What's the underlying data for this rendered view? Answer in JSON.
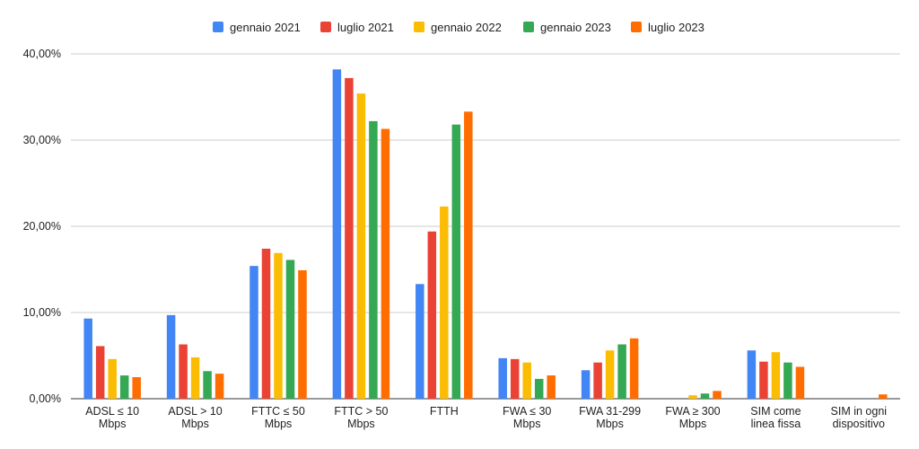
{
  "chart_data": {
    "type": "bar",
    "title": "",
    "xlabel": "",
    "ylabel": "",
    "ylim": [
      0,
      40
    ],
    "y_ticks": [
      0,
      10,
      20,
      30,
      40
    ],
    "y_tick_labels": [
      "0,00%",
      "10,00%",
      "20,00%",
      "30,00%",
      "40,00%"
    ],
    "grid": true,
    "legend_position": "top-center",
    "categories": [
      [
        "ADSL ≤ 10",
        "Mbps"
      ],
      [
        "ADSL > 10",
        "Mbps"
      ],
      [
        "FTTC ≤ 50",
        "Mbps"
      ],
      [
        "FTTC > 50",
        "Mbps"
      ],
      [
        "FTTH"
      ],
      [
        "FWA ≤ 30",
        "Mbps"
      ],
      [
        "FWA 31-299",
        "Mbps"
      ],
      [
        "FWA ≥ 300",
        "Mbps"
      ],
      [
        "SIM come",
        "linea fissa"
      ],
      [
        "SIM in ogni",
        "dispositivo"
      ]
    ],
    "series": [
      {
        "name": "gennaio 2021",
        "color": "#4285F4",
        "values": [
          9.3,
          9.7,
          15.4,
          38.2,
          13.3,
          4.7,
          3.3,
          0,
          5.6,
          0
        ]
      },
      {
        "name": "luglio 2021",
        "color": "#EA4335",
        "values": [
          6.1,
          6.3,
          17.4,
          37.2,
          19.4,
          4.6,
          4.2,
          0,
          4.3,
          0
        ]
      },
      {
        "name": "gennaio 2022",
        "color": "#FBBC04",
        "values": [
          4.6,
          4.8,
          16.9,
          35.4,
          22.3,
          4.2,
          5.6,
          0.4,
          5.4,
          0
        ]
      },
      {
        "name": "gennaio 2023",
        "color": "#34A853",
        "values": [
          2.7,
          3.2,
          16.1,
          32.2,
          31.8,
          2.3,
          6.3,
          0.6,
          4.2,
          0
        ]
      },
      {
        "name": "luglio 2023",
        "color": "#FF6D01",
        "values": [
          2.5,
          2.9,
          14.9,
          31.3,
          33.3,
          2.7,
          7.0,
          0.9,
          3.7,
          0.5
        ]
      }
    ]
  }
}
